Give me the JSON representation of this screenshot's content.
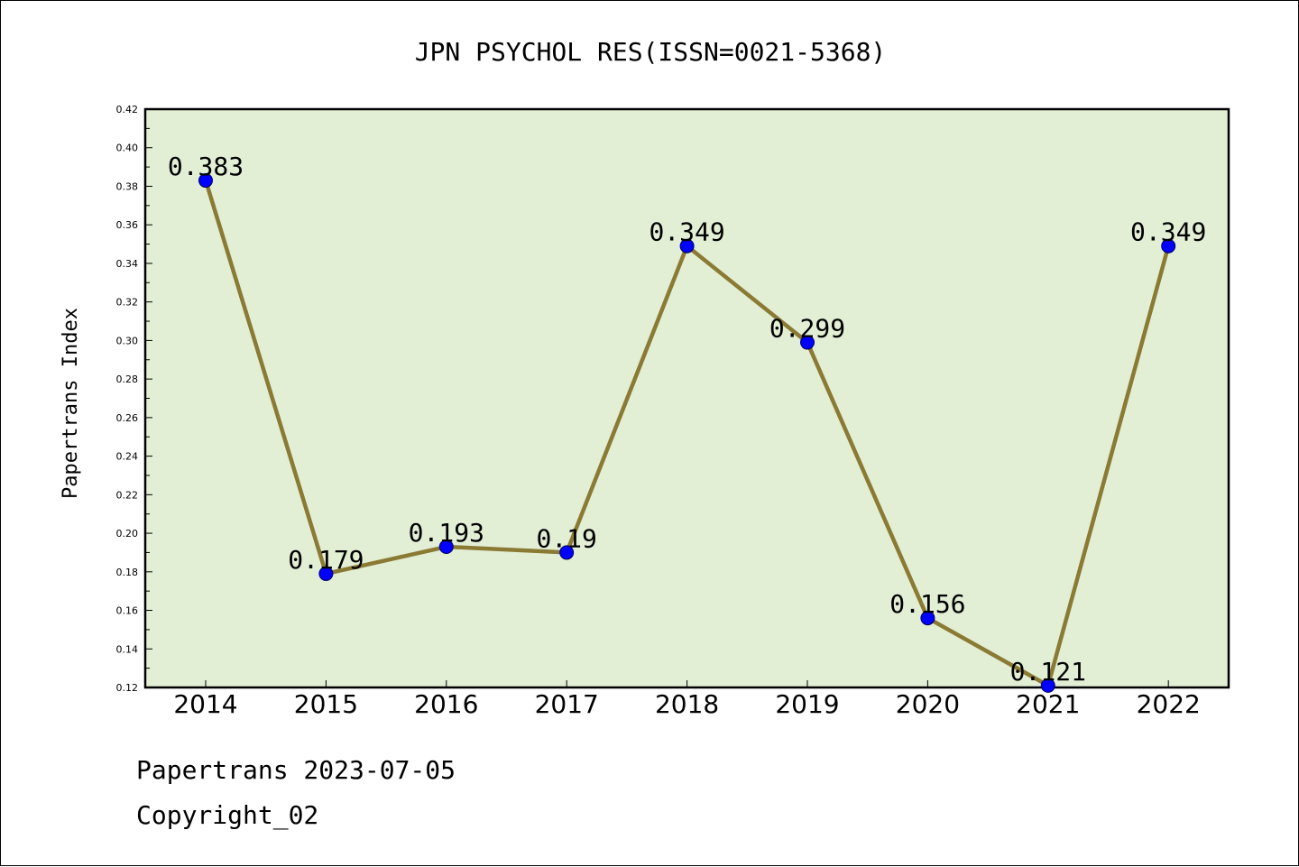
{
  "footer": {
    "date_line": "Papertrans 2023-07-05",
    "copyright": "Copyright_02"
  },
  "colors": {
    "plot_bg": "#e2efd5",
    "line": "#8b7a33",
    "marker": "#0000ff"
  },
  "chart_data": {
    "type": "line",
    "title": "JPN PSYCHOL RES(ISSN=0021-5368)",
    "xlabel": "",
    "ylabel": "Papertrans Index",
    "categories": [
      "2014",
      "2015",
      "2016",
      "2017",
      "2018",
      "2019",
      "2020",
      "2021",
      "2022"
    ],
    "values": [
      0.383,
      0.179,
      0.193,
      0.19,
      0.349,
      0.299,
      0.156,
      0.121,
      0.349
    ],
    "data_labels": [
      "0.383",
      "0.179",
      "0.193",
      "0.19",
      "0.349",
      "0.299",
      "0.156",
      "0.121",
      "0.349"
    ],
    "ylim": [
      0.12,
      0.42
    ],
    "yticks": [
      "0.12",
      "0.14",
      "0.16",
      "0.18",
      "0.20",
      "0.22",
      "0.24",
      "0.26",
      "0.28",
      "0.30",
      "0.32",
      "0.34",
      "0.36",
      "0.38",
      "0.40",
      "0.42"
    ],
    "grid": false,
    "legend": "none"
  }
}
